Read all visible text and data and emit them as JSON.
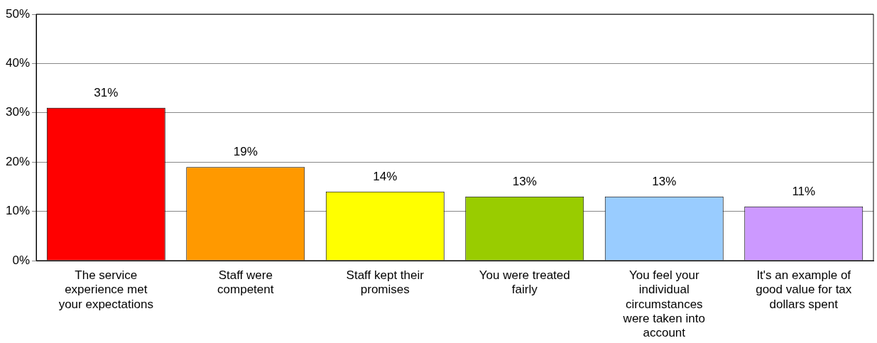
{
  "chart_data": {
    "type": "bar",
    "categories": [
      "The service experience met your expectations",
      "Staff were competent",
      "Staff kept their promises",
      "You were treated fairly",
      "You feel your individual circumstances were taken into account",
      "It's an example of good value for tax dollars spent"
    ],
    "values": [
      31,
      19,
      14,
      13,
      13,
      11
    ],
    "colors": [
      "#ff0000",
      "#ff9900",
      "#ffff00",
      "#99cc00",
      "#99ccff",
      "#cc99ff"
    ],
    "value_labels": [
      "31%",
      "19%",
      "14%",
      "13%",
      "13%",
      "11%"
    ],
    "ylim": [
      0,
      50
    ],
    "yticks": [
      {
        "value": 0,
        "label": "0%"
      },
      {
        "value": 10,
        "label": "10%"
      },
      {
        "value": 20,
        "label": "20%"
      },
      {
        "value": 30,
        "label": "30%"
      },
      {
        "value": 40,
        "label": "40%"
      },
      {
        "value": 50,
        "label": "50%"
      }
    ],
    "grid": "y",
    "legend": false
  }
}
